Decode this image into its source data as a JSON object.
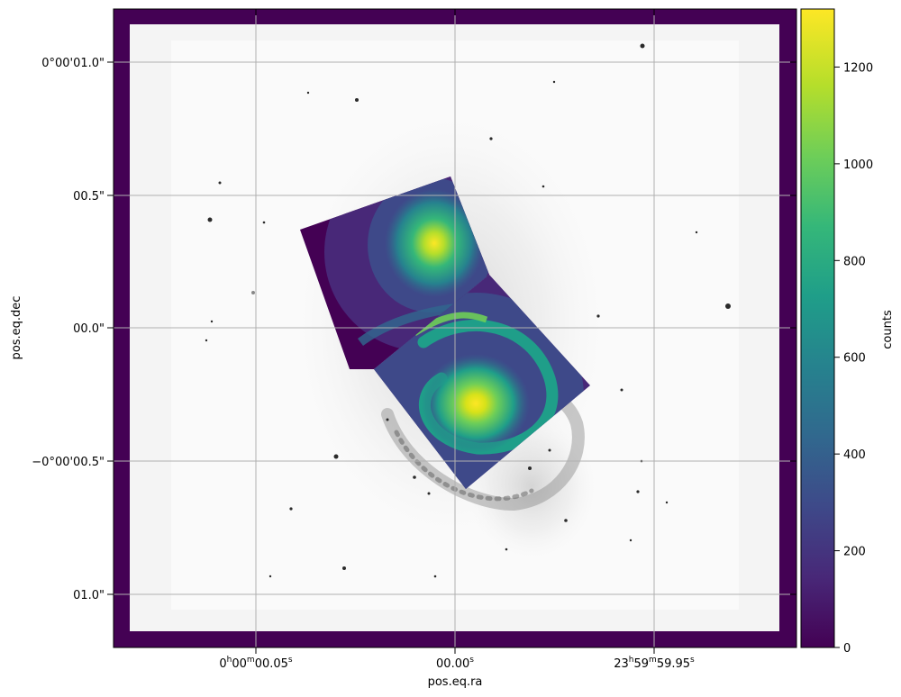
{
  "chart_data": {
    "type": "heatmap",
    "xlabel": "pos.eq.ra",
    "ylabel": "pos.eq.dec",
    "x_ticks": [
      {
        "h": "0",
        "m": "00",
        "s": "00.05"
      },
      {
        "h": "",
        "m": "",
        "s": "00.00"
      },
      {
        "h": "23",
        "m": "59",
        "s": "59.95"
      }
    ],
    "y_ticks": [
      "0°00'01.0\"",
      "00.5\"",
      "00.0\"",
      "−0°00'00.5\"",
      "01.0\""
    ],
    "y_tick_values": [
      1.0,
      0.5,
      0.0,
      -0.5,
      -1.0
    ],
    "colorbar": {
      "label": "counts",
      "ticks": [
        0,
        200,
        400,
        600,
        800,
        1000,
        1200
      ],
      "range": [
        0,
        1320
      ],
      "colormap": "viridis"
    },
    "grid": true,
    "background_layer": "greyscale optical image of an interacting spiral galaxy pair",
    "overlay_layer": "two rotated viridis-scaled mosaic tiles over the galaxy cores",
    "overlay_peaks": [
      {
        "name": "northern core",
        "ra_offset_s": 0.0072,
        "dec_arcsec": 0.3,
        "counts": 1300
      },
      {
        "name": "southern core",
        "ra_offset_s": -0.0055,
        "dec_arcsec": -0.3,
        "counts": 1320
      }
    ],
    "colors": {
      "frame": "#440154",
      "grid": "#b0b0b0",
      "viridis": [
        "#440154",
        "#482878",
        "#3e4989",
        "#31688e",
        "#26828e",
        "#1f9e89",
        "#35b779",
        "#6ece58",
        "#b5de2b",
        "#fde725"
      ]
    }
  }
}
